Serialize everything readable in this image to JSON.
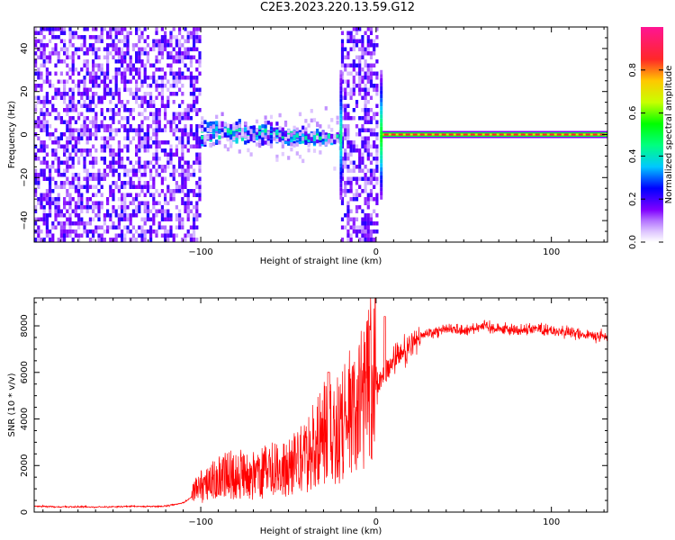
{
  "title": "C2E3.2023.220.13.59.G12",
  "chart_data": [
    {
      "type": "heatmap",
      "xlabel": "Height of straight line (km)",
      "ylabel": "Frequency (Hz)",
      "xlim": [
        -195,
        132
      ],
      "ylim": [
        -50,
        50
      ],
      "xticks": [
        -100,
        0,
        100
      ],
      "yticks": [
        -40,
        -20,
        0,
        20,
        40
      ],
      "colorbar": {
        "label": "Normalized spectral amplitude",
        "range": [
          0,
          1
        ],
        "ticks": [
          0.0,
          0.2,
          0.4,
          0.6,
          0.8
        ],
        "colormap": [
          "#ffffff",
          "#8000ff",
          "#0000ff",
          "#00ffff",
          "#00ff00",
          "#ffff00",
          "#ff0000",
          "#ff1493"
        ]
      },
      "regions": [
        {
          "x": [
            -195,
            -100
          ],
          "description": "broadband noise",
          "level": 0.15
        },
        {
          "x": [
            -100,
            -20
          ],
          "center_hz": 1,
          "spread_hz": 6,
          "level": 0.4
        },
        {
          "x": [
            -20,
            0
          ],
          "description": "broadband noise",
          "level": 0.2
        },
        {
          "x": [
            3,
            132
          ],
          "center_hz": 0,
          "level": 0.85
        }
      ]
    },
    {
      "type": "line",
      "xlabel": "Height of straight line (km)",
      "ylabel": "SNR (10 * v/v)",
      "xlim": [
        -195,
        132
      ],
      "ylim": [
        0,
        9200
      ],
      "xticks": [
        -100,
        0,
        100
      ],
      "yticks": [
        0,
        2000,
        4000,
        6000,
        8000
      ],
      "color": "#ff0000",
      "series": [
        {
          "x": [
            -195,
            -180,
            -160,
            -140,
            -120,
            -110,
            -100,
            -90,
            -80,
            -70,
            -60,
            -50,
            -40,
            -35,
            -30,
            -25,
            -20,
            -15,
            -10,
            -5,
            0,
            5,
            10,
            15,
            20,
            25,
            30,
            40,
            50,
            60,
            70,
            80,
            90,
            100,
            110,
            120,
            132
          ],
          "y": [
            250,
            230,
            220,
            240,
            250,
            400,
            900,
            1200,
            1400,
            1300,
            1500,
            1600,
            2000,
            2500,
            2800,
            2900,
            3100,
            3500,
            3900,
            4400,
            5200,
            5900,
            6500,
            6800,
            7200,
            7500,
            7700,
            7900,
            7800,
            8000,
            7900,
            7800,
            7900,
            7800,
            7700,
            7600,
            7500
          ]
        }
      ]
    }
  ]
}
